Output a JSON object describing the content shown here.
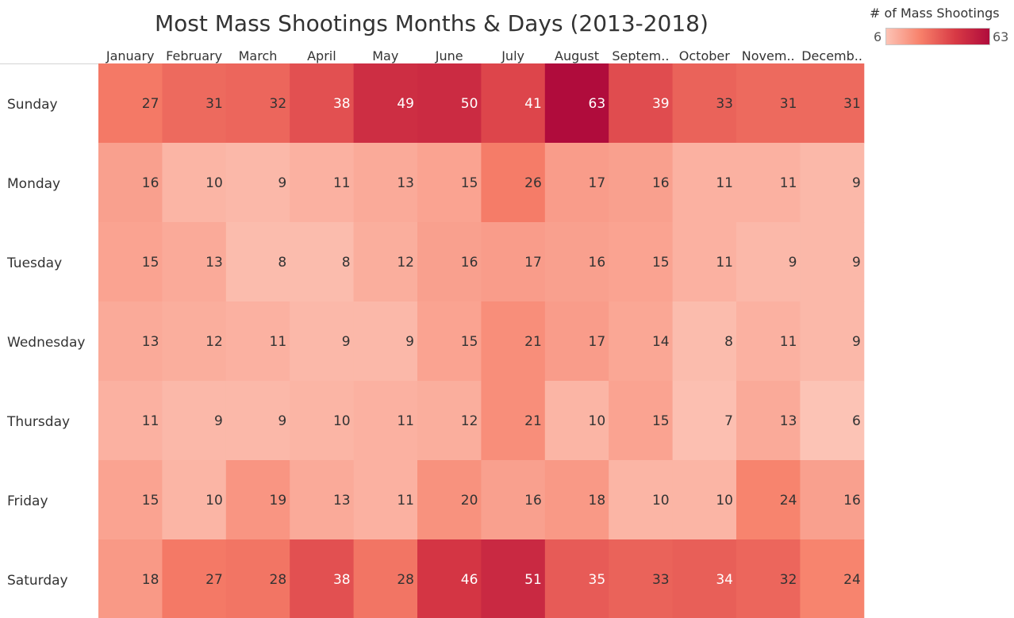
{
  "chart_data": {
    "type": "heatmap",
    "title": "Most Mass Shootings Months & Days (2013-2018)",
    "legend": {
      "title": "# of Mass Shootings",
      "min": 6,
      "max": 63,
      "placement": "top-right",
      "colors": [
        "#fcc3b5",
        "#f7806a",
        "#d83a45",
        "#b00c3c"
      ]
    },
    "columns": [
      "January",
      "February",
      "March",
      "April",
      "May",
      "June",
      "July",
      "August",
      "Septem..",
      "October",
      "Novem..",
      "Decemb.."
    ],
    "rows": [
      "Sunday",
      "Monday",
      "Tuesday",
      "Wednesday",
      "Thursday",
      "Friday",
      "Saturday"
    ],
    "values": [
      [
        27,
        31,
        32,
        38,
        49,
        50,
        41,
        63,
        39,
        33,
        31,
        31
      ],
      [
        16,
        10,
        9,
        11,
        13,
        15,
        26,
        17,
        16,
        11,
        11,
        9
      ],
      [
        15,
        13,
        8,
        8,
        12,
        16,
        17,
        16,
        15,
        11,
        9,
        9
      ],
      [
        13,
        12,
        11,
        9,
        9,
        15,
        21,
        17,
        14,
        8,
        11,
        9
      ],
      [
        11,
        9,
        9,
        10,
        11,
        12,
        21,
        10,
        15,
        7,
        13,
        6
      ],
      [
        15,
        10,
        19,
        13,
        11,
        20,
        16,
        18,
        10,
        10,
        24,
        16
      ],
      [
        18,
        27,
        28,
        38,
        28,
        46,
        51,
        35,
        33,
        34,
        32,
        24
      ]
    ]
  }
}
